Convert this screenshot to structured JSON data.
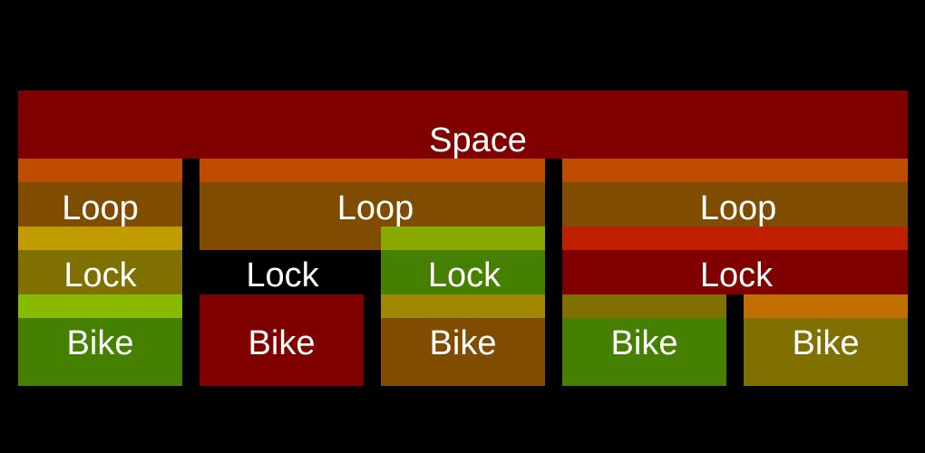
{
  "space": {
    "label": "Space",
    "color": "#800000"
  },
  "columns": [
    {
      "loop": {
        "label": "Loop",
        "band": "#c04c00",
        "body": "#804c00"
      },
      "lock": {
        "label": "Lock",
        "band": "#c09c00",
        "body": "#807000"
      },
      "bikes": [
        {
          "label": "Bike",
          "band": "#88bb00",
          "body": "#468000"
        }
      ]
    },
    {
      "loop": {
        "label": "Loop",
        "band": "#c04c00",
        "body": "#804c00"
      },
      "lock": {
        "label": "Lock",
        "band": "",
        "body": "#000000"
      },
      "bikes": [
        {
          "label": "Bike",
          "band": "",
          "body": "#800000"
        }
      ]
    },
    {
      "loop": null,
      "lock": {
        "label": "Lock",
        "band": "#88aa00",
        "body": "#468000"
      },
      "bikes": [
        {
          "label": "Bike",
          "band": "#a08800",
          "body": "#804c00"
        }
      ]
    },
    {
      "loop": {
        "label": "Loop",
        "band": "#c04c00",
        "body": "#804c00"
      },
      "lock": {
        "label": "Lock",
        "band": "#c02000",
        "body": "#800000"
      },
      "bikes": [
        {
          "label": "Bike",
          "band": "#807000",
          "body": "#468000"
        },
        {
          "label": "Bike",
          "band": "#c07000",
          "body": "#807000"
        }
      ]
    }
  ]
}
